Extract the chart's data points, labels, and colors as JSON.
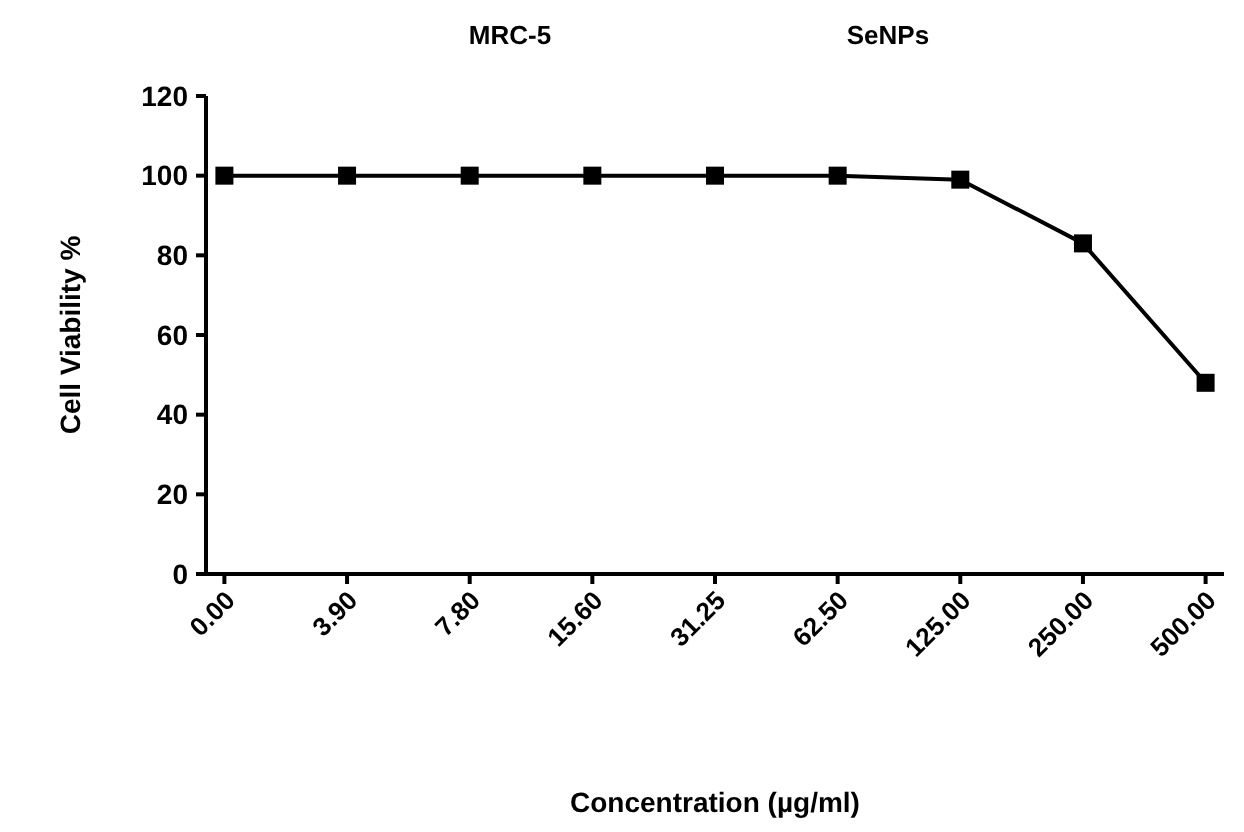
{
  "chart_data": {
    "type": "line",
    "title": "MRC-5",
    "subtitle": "SeNPs",
    "xlabel": "Concentration (µg/ml)",
    "ylabel": "Cell Viability %",
    "categories": [
      "0.00",
      "3.90",
      "7.80",
      "15.60",
      "31.25",
      "62.50",
      "125.00",
      "250.00",
      "500.00"
    ],
    "series": [
      {
        "color": "#000000",
        "values": [
          100,
          100,
          100,
          100,
          100,
          100,
          99,
          83,
          48
        ]
      }
    ],
    "ylim": [
      0,
      120
    ],
    "yticks": [
      0,
      20,
      40,
      60,
      80,
      100,
      120
    ],
    "marker": "square",
    "line_style": "solid",
    "grid": false
  }
}
